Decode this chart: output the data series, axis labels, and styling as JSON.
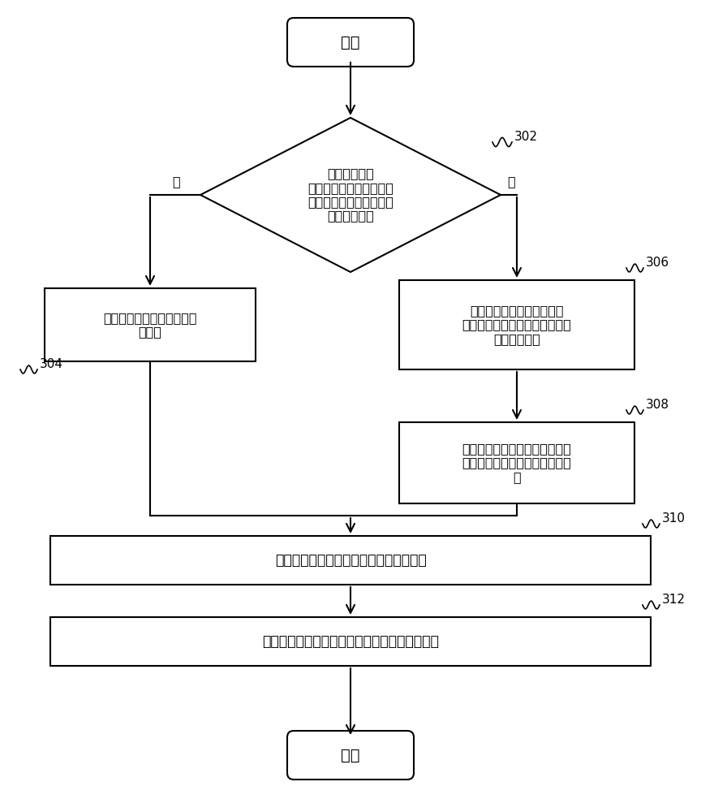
{
  "bg_color": "#ffffff",
  "line_color": "#000000",
  "text_color": "#000000",
  "start_text": "开始",
  "end_text": "结束",
  "diamond_text": "检测续传调度\n信息是否携带有用于发送\n续传调度信息的时间窗口\n的结束时间点",
  "diamond_label": "302",
  "yes_text": "是",
  "no_text": "否",
  "box304_text": "从续传调度信息中获取结束\n时间点",
  "box304_label": "304",
  "box306_text": "获取预先定义的时间窗口的\n长度，并检测当前信道占用时间\n的开始时间点",
  "box306_label": "306",
  "box308_text": "将开始时间点和时间窗口的长度\n相加，得到时间窗口的结束时间\n点",
  "box308_label": "308",
  "box310_text": "获取结束时间点与第一时间点的时间间隔",
  "box310_label": "310",
  "box312_text": "将结束时间点与时间间隔相加，得到第一时间点",
  "box312_label": "312"
}
